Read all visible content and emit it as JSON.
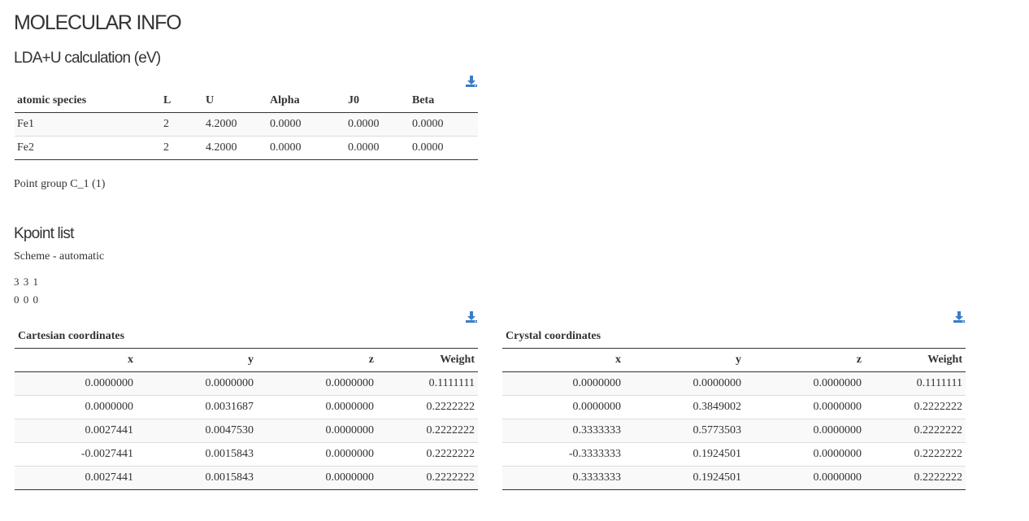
{
  "page_title": "MOLECULAR INFO",
  "lda": {
    "heading": "LDA+U calculation (eV)",
    "download_icon": "download-icon",
    "columns": [
      "atomic species",
      "L",
      "U",
      "Alpha",
      "J0",
      "Beta"
    ],
    "rows": [
      [
        "Fe1",
        "2",
        "4.2000",
        "0.0000",
        "0.0000",
        "0.0000"
      ],
      [
        "Fe2",
        "2",
        "4.2000",
        "0.0000",
        "0.0000",
        "0.0000"
      ]
    ]
  },
  "point_group": "Point group C_1 (1)",
  "kpoint": {
    "heading": "Kpoint list",
    "scheme": "Scheme - automatic",
    "grid": "3 3 1",
    "shift": "0 0 0",
    "cartesian": {
      "caption": "Cartesian coordinates",
      "columns": [
        "x",
        "y",
        "z",
        "Weight"
      ],
      "rows": [
        [
          "0.0000000",
          "0.0000000",
          "0.0000000",
          "0.1111111"
        ],
        [
          "0.0000000",
          "0.0031687",
          "0.0000000",
          "0.2222222"
        ],
        [
          "0.0027441",
          "0.0047530",
          "0.0000000",
          "0.2222222"
        ],
        [
          "-0.0027441",
          "0.0015843",
          "0.0000000",
          "0.2222222"
        ],
        [
          "0.0027441",
          "0.0015843",
          "0.0000000",
          "0.2222222"
        ]
      ]
    },
    "crystal": {
      "caption": "Crystal coordinates",
      "columns": [
        "x",
        "y",
        "z",
        "Weight"
      ],
      "rows": [
        [
          "0.0000000",
          "0.0000000",
          "0.0000000",
          "0.1111111"
        ],
        [
          "0.0000000",
          "0.3849002",
          "0.0000000",
          "0.2222222"
        ],
        [
          "0.3333333",
          "0.5773503",
          "0.0000000",
          "0.2222222"
        ],
        [
          "-0.3333333",
          "0.1924501",
          "0.0000000",
          "0.2222222"
        ],
        [
          "0.3333333",
          "0.1924501",
          "0.0000000",
          "0.2222222"
        ]
      ]
    }
  },
  "colors": {
    "icon": "#3a7bc8",
    "text": "#333333",
    "stripe": "#f9f9f9"
  }
}
